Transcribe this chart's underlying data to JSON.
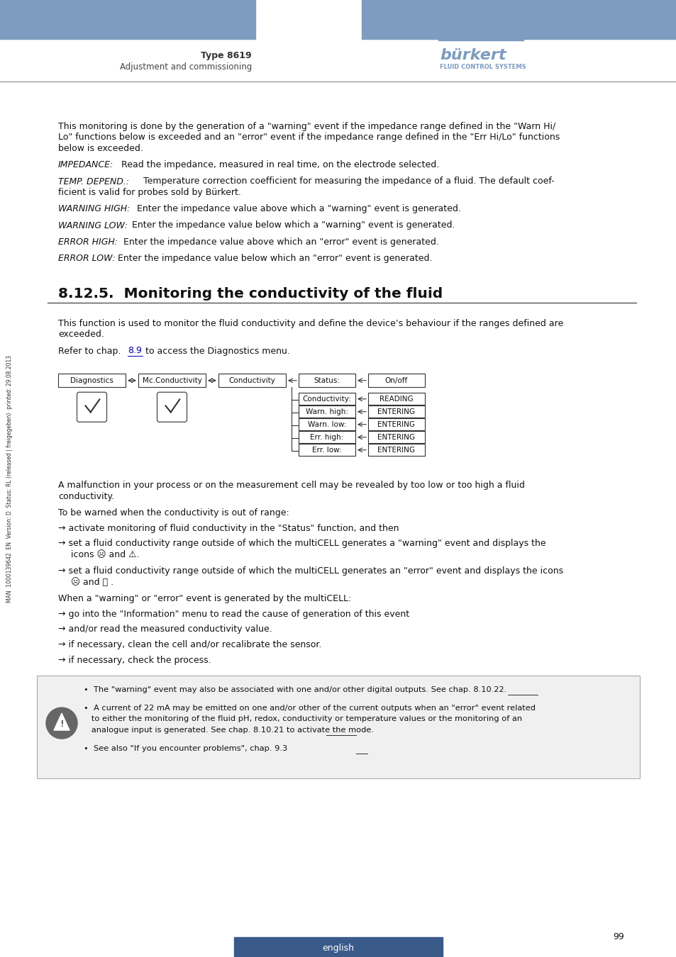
{
  "page_bg": "#ffffff",
  "header_bar_color": "#7d9cbf",
  "header_text_left": "Type 8619",
  "header_subtext_left": "Adjustment and commissioning",
  "page_number": "99",
  "footer_text": "english",
  "footer_bg": "#3a5a8a",
  "footer_text_color": "#ffffff",
  "side_text": "MAN  1000139642  EN  Version: D  Status: RL (released | freigegeben)  printed: 29.08.2013",
  "body_color": "#111111",
  "link_color": "#0000aa"
}
